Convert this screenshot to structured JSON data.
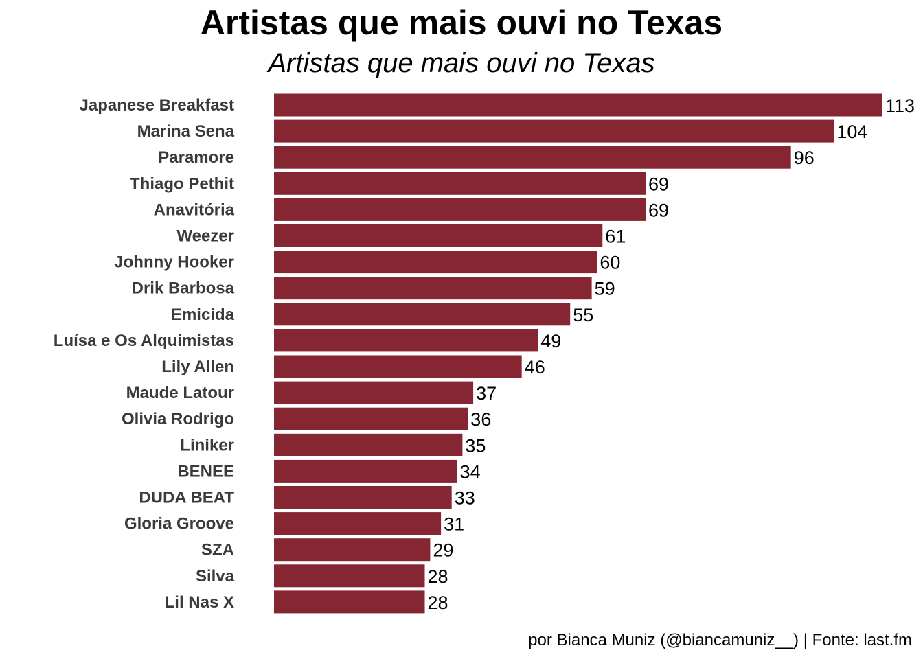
{
  "chart_data": {
    "type": "bar",
    "orientation": "horizontal",
    "title": "Artistas que mais ouvi no Texas",
    "subtitle": "Artistas que mais ouvi no Texas",
    "caption": "por Bianca Muniz (@biancamuniz__) | Fonte: last.fm",
    "xlabel": "",
    "ylabel": "",
    "grid": false,
    "bar_color": "#862633",
    "categories": [
      "Japanese Breakfast",
      "Marina Sena",
      "Paramore",
      "Thiago Pethit",
      "Anavitória",
      "Weezer",
      "Johnny Hooker",
      "Drik Barbosa",
      "Emicida",
      "Luísa e Os Alquimistas",
      "Lily Allen",
      "Maude Latour",
      "Olivia Rodrigo",
      "Liniker",
      "BENEE",
      "DUDA BEAT",
      "Gloria Groove",
      "SZA",
      "Silva",
      "Lil Nas X"
    ],
    "values": [
      113,
      104,
      96,
      69,
      69,
      61,
      60,
      59,
      55,
      49,
      46,
      37,
      36,
      35,
      34,
      33,
      31,
      29,
      28,
      28
    ],
    "value_labels": [
      "113",
      "104",
      "96",
      "69",
      "69",
      "61",
      "60",
      "59",
      "55",
      "49",
      "46",
      "37",
      "36",
      "35",
      "34",
      "33",
      "31",
      "29",
      "28",
      "28"
    ],
    "xlim": [
      0,
      113
    ]
  }
}
